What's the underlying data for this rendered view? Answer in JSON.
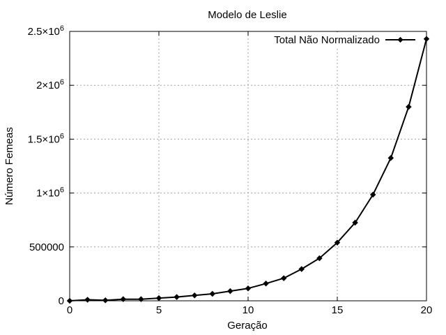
{
  "chart_data": {
    "type": "line",
    "title": "Modelo de Leslie",
    "xlabel": "Geração",
    "ylabel": "Número Femeas",
    "xlim": [
      0,
      20
    ],
    "ylim": [
      0,
      2500000
    ],
    "x_ticks": [
      0,
      5,
      10,
      15,
      20
    ],
    "x_tick_labels": [
      "0",
      "5",
      "10",
      "15",
      "20"
    ],
    "y_ticks": [
      0,
      500000,
      1000000,
      1500000,
      2000000,
      2500000
    ],
    "y_tick_labels": [
      {
        "text": "0",
        "exp": ""
      },
      {
        "text": "500000",
        "exp": ""
      },
      {
        "text": "1×10",
        "exp": "6"
      },
      {
        "text": "1.5×10",
        "exp": "6"
      },
      {
        "text": "2×10",
        "exp": "6"
      },
      {
        "text": "2.5×10",
        "exp": "6"
      }
    ],
    "grid": true,
    "legend_position": "top-right",
    "series": [
      {
        "name": "Total Não Normalizado",
        "color": "#000000",
        "x": [
          0,
          1,
          2,
          3,
          4,
          5,
          6,
          7,
          8,
          9,
          10,
          11,
          12,
          13,
          14,
          15,
          16,
          17,
          18,
          19,
          20
        ],
        "y": [
          0,
          10000,
          5000,
          15000,
          15000,
          25000,
          35000,
          50000,
          65000,
          90000,
          115000,
          160000,
          210000,
          295000,
          395000,
          540000,
          725000,
          985000,
          1325000,
          1800000,
          2430000
        ]
      }
    ]
  }
}
